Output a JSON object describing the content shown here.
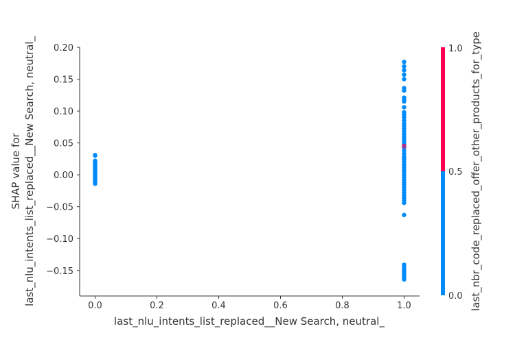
{
  "chart_data": {
    "type": "scatter",
    "xlabel": "last_nlu_intents_list_replaced__New Search, neutral_",
    "ylabel_lines": [
      "SHAP value for",
      "last_nlu_intents_list_replaced__New Search, neutral_"
    ],
    "xlim": [
      -0.05,
      1.05
    ],
    "ylim": [
      -0.19,
      0.2
    ],
    "xticks": [
      0.0,
      0.2,
      0.4,
      0.6,
      0.8,
      1.0
    ],
    "xtick_labels": [
      "0.0",
      "0.2",
      "0.4",
      "0.6",
      "0.8",
      "1.0"
    ],
    "yticks": [
      0.2,
      0.15,
      0.1,
      0.05,
      0.0,
      -0.05,
      -0.1,
      -0.15
    ],
    "ytick_labels": [
      "0.20",
      "0.15",
      "0.10",
      "0.05",
      "0.00",
      "−0.05",
      "−0.10",
      "−0.15"
    ],
    "colorbar": {
      "label": "last_nbr_code_replaced_offer_other_products_for_type",
      "ticks": [
        "1.0",
        "0.5",
        "0.0"
      ],
      "low_color": "#008bfb",
      "high_color": "#ff0052"
    },
    "points": [
      {
        "x": 0,
        "y": 0.031,
        "c": 0
      },
      {
        "x": 0,
        "y": 0.03,
        "c": 0
      },
      {
        "x": 0,
        "y": 0.022,
        "c": 0
      },
      {
        "x": 0,
        "y": 0.02,
        "c": 0
      },
      {
        "x": 0,
        "y": 0.018,
        "c": 0
      },
      {
        "x": 0,
        "y": 0.016,
        "c": 0
      },
      {
        "x": 0,
        "y": 0.014,
        "c": 0
      },
      {
        "x": 0,
        "y": 0.012,
        "c": 0
      },
      {
        "x": 0,
        "y": 0.01,
        "c": 0
      },
      {
        "x": 0,
        "y": 0.008,
        "c": 0
      },
      {
        "x": 0,
        "y": 0.006,
        "c": 0
      },
      {
        "x": 0,
        "y": 0.004,
        "c": 0
      },
      {
        "x": 0,
        "y": 0.002,
        "c": 0
      },
      {
        "x": 0,
        "y": 0.0,
        "c": 0
      },
      {
        "x": 0,
        "y": -0.002,
        "c": 0
      },
      {
        "x": 0,
        "y": -0.004,
        "c": 0
      },
      {
        "x": 0,
        "y": -0.006,
        "c": 0
      },
      {
        "x": 0,
        "y": -0.008,
        "c": 0
      },
      {
        "x": 0,
        "y": -0.01,
        "c": 0
      },
      {
        "x": 0,
        "y": -0.012,
        "c": 0
      },
      {
        "x": 0,
        "y": -0.014,
        "c": 0
      },
      {
        "x": 1,
        "y": 0.177,
        "c": 0
      },
      {
        "x": 1,
        "y": 0.17,
        "c": 0
      },
      {
        "x": 1,
        "y": 0.164,
        "c": 0
      },
      {
        "x": 1,
        "y": 0.157,
        "c": 0
      },
      {
        "x": 1,
        "y": 0.15,
        "c": 0
      },
      {
        "x": 1,
        "y": 0.136,
        "c": 0
      },
      {
        "x": 1,
        "y": 0.132,
        "c": 0
      },
      {
        "x": 1,
        "y": 0.121,
        "c": 0
      },
      {
        "x": 1,
        "y": 0.118,
        "c": 0
      },
      {
        "x": 1,
        "y": 0.115,
        "c": 0
      },
      {
        "x": 1,
        "y": 0.106,
        "c": 0
      },
      {
        "x": 1,
        "y": 0.098,
        "c": 0
      },
      {
        "x": 1,
        "y": 0.094,
        "c": 0
      },
      {
        "x": 1,
        "y": 0.09,
        "c": 0
      },
      {
        "x": 1,
        "y": 0.085,
        "c": 0
      },
      {
        "x": 1,
        "y": 0.08,
        "c": 0
      },
      {
        "x": 1,
        "y": 0.076,
        "c": 0
      },
      {
        "x": 1,
        "y": 0.072,
        "c": 0
      },
      {
        "x": 1,
        "y": 0.068,
        "c": 0
      },
      {
        "x": 1,
        "y": 0.064,
        "c": 0
      },
      {
        "x": 1,
        "y": 0.06,
        "c": 0
      },
      {
        "x": 1,
        "y": 0.056,
        "c": 0
      },
      {
        "x": 1,
        "y": 0.052,
        "c": 0
      },
      {
        "x": 1,
        "y": 0.048,
        "c": 0
      },
      {
        "x": 1,
        "y": 0.045,
        "c": 1
      },
      {
        "x": 1,
        "y": 0.043,
        "c": 0.5
      },
      {
        "x": 1,
        "y": 0.038,
        "c": 0
      },
      {
        "x": 1,
        "y": 0.033,
        "c": 0
      },
      {
        "x": 1,
        "y": 0.028,
        "c": 0
      },
      {
        "x": 1,
        "y": 0.024,
        "c": 0
      },
      {
        "x": 1,
        "y": 0.02,
        "c": 0
      },
      {
        "x": 1,
        "y": 0.016,
        "c": 0
      },
      {
        "x": 1,
        "y": 0.012,
        "c": 0
      },
      {
        "x": 1,
        "y": 0.008,
        "c": 0
      },
      {
        "x": 1,
        "y": 0.004,
        "c": 0
      },
      {
        "x": 1,
        "y": 0.0,
        "c": 0
      },
      {
        "x": 1,
        "y": -0.004,
        "c": 0
      },
      {
        "x": 1,
        "y": -0.008,
        "c": 0
      },
      {
        "x": 1,
        "y": -0.012,
        "c": 0
      },
      {
        "x": 1,
        "y": -0.016,
        "c": 0
      },
      {
        "x": 1,
        "y": -0.02,
        "c": 0
      },
      {
        "x": 1,
        "y": -0.024,
        "c": 0
      },
      {
        "x": 1,
        "y": -0.028,
        "c": 0
      },
      {
        "x": 1,
        "y": -0.032,
        "c": 0
      },
      {
        "x": 1,
        "y": -0.036,
        "c": 0
      },
      {
        "x": 1,
        "y": -0.04,
        "c": 0
      },
      {
        "x": 1,
        "y": -0.044,
        "c": 0
      },
      {
        "x": 1,
        "y": -0.063,
        "c": 0
      },
      {
        "x": 1,
        "y": -0.141,
        "c": 0
      },
      {
        "x": 1,
        "y": -0.145,
        "c": 0
      },
      {
        "x": 1,
        "y": -0.149,
        "c": 0
      },
      {
        "x": 1,
        "y": -0.152,
        "c": 0
      },
      {
        "x": 1,
        "y": -0.155,
        "c": 0
      },
      {
        "x": 1,
        "y": -0.158,
        "c": 0
      },
      {
        "x": 1,
        "y": -0.161,
        "c": 0
      },
      {
        "x": 1,
        "y": -0.164,
        "c": 0
      }
    ]
  }
}
